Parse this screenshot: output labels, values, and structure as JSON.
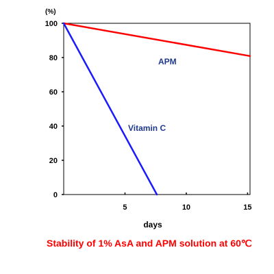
{
  "chart_data": {
    "type": "line",
    "title": "Stability of 1% AsA and APM solution at 60℃",
    "xlabel": "days",
    "ylabel": "(%)",
    "xlim": [
      0,
      15.2
    ],
    "ylim": [
      0,
      100
    ],
    "xticks": [
      5,
      10,
      15
    ],
    "yticks": [
      0,
      20,
      40,
      60,
      80,
      100
    ],
    "grid": false,
    "series": [
      {
        "name": "APM",
        "color": "#ff0000",
        "x": [
          0,
          15.5
        ],
        "y": [
          100,
          80.5
        ]
      },
      {
        "name": "Vitamin C",
        "color": "#1a1aff",
        "x": [
          0,
          7.6
        ],
        "y": [
          100,
          0
        ]
      }
    ],
    "label_color": "#1f3a8f",
    "title_color": "#ff0000"
  }
}
